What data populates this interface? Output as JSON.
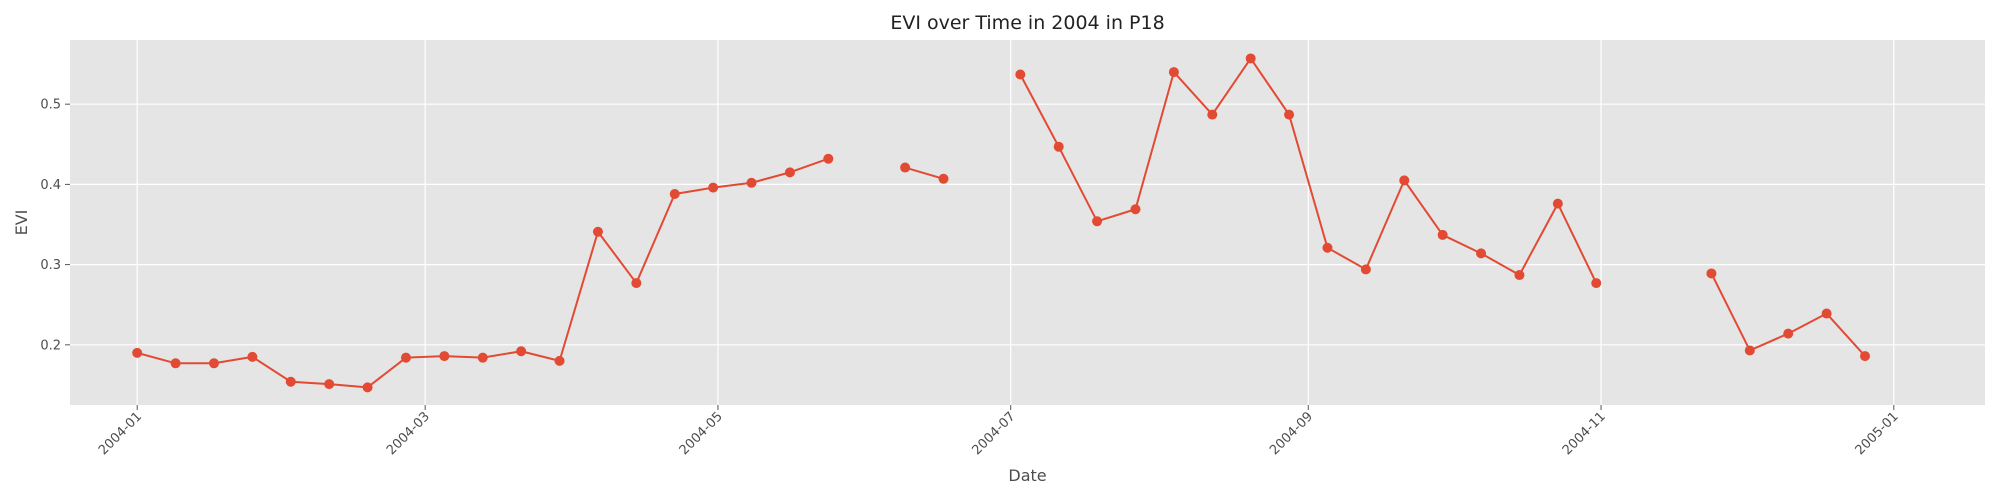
{
  "chart_data": {
    "type": "line",
    "title": "EVI over Time in 2004 in P18",
    "xlabel": "Date",
    "ylabel": "EVI",
    "x_range": [
      "2003-12-18",
      "2005-01-20"
    ],
    "ylim": [
      0.125,
      0.58
    ],
    "x_ticks": [
      "2004-01",
      "2004-03",
      "2004-05",
      "2004-07",
      "2004-09",
      "2004-11",
      "2005-01"
    ],
    "y_ticks": [
      0.2,
      0.3,
      0.4,
      0.5
    ],
    "grid": true,
    "marker": "circle",
    "colors": {
      "series": "#e24a33",
      "plot_background": "#e5e5e5",
      "grid": "#ffffff"
    },
    "series": [
      {
        "points": [
          [
            "2004-01-01",
            0.19
          ],
          [
            "2004-01-09",
            0.177
          ],
          [
            "2004-01-17",
            0.177
          ],
          [
            "2004-01-25",
            0.185
          ],
          [
            "2004-02-02",
            0.154
          ],
          [
            "2004-02-10",
            0.151
          ],
          [
            "2004-02-18",
            0.147
          ],
          [
            "2004-02-26",
            0.184
          ],
          [
            "2004-03-05",
            0.186
          ],
          [
            "2004-03-13",
            0.184
          ],
          [
            "2004-03-21",
            0.192
          ],
          [
            "2004-03-29",
            0.18
          ],
          [
            "2004-04-06",
            0.341
          ],
          [
            "2004-04-14",
            0.277
          ],
          [
            "2004-04-22",
            0.388
          ],
          [
            "2004-04-30",
            0.396
          ],
          [
            "2004-05-08",
            0.402
          ],
          [
            "2004-05-16",
            0.415
          ],
          [
            "2004-05-24",
            0.432
          ],
          [
            "2004-06-01",
            null
          ],
          [
            "2004-06-09",
            0.421
          ],
          [
            "2004-06-17",
            0.407
          ],
          [
            "2004-06-25",
            null
          ],
          [
            "2004-07-03",
            0.537
          ],
          [
            "2004-07-11",
            0.447
          ],
          [
            "2004-07-19",
            0.354
          ],
          [
            "2004-07-27",
            0.369
          ],
          [
            "2004-08-04",
            0.54
          ],
          [
            "2004-08-12",
            0.487
          ],
          [
            "2004-08-20",
            0.557
          ],
          [
            "2004-08-28",
            0.487
          ],
          [
            "2004-09-05",
            0.321
          ],
          [
            "2004-09-13",
            0.294
          ],
          [
            "2004-09-21",
            0.405
          ],
          [
            "2004-09-29",
            0.337
          ],
          [
            "2004-10-07",
            0.314
          ],
          [
            "2004-10-15",
            0.287
          ],
          [
            "2004-10-23",
            0.376
          ],
          [
            "2004-10-31",
            0.277
          ],
          [
            "2004-11-08",
            null
          ],
          [
            "2004-11-16",
            null
          ],
          [
            "2004-11-24",
            0.289
          ],
          [
            "2004-12-02",
            0.193
          ],
          [
            "2004-12-10",
            0.214
          ],
          [
            "2004-12-18",
            0.239
          ],
          [
            "2004-12-26",
            0.186
          ]
        ]
      }
    ]
  }
}
